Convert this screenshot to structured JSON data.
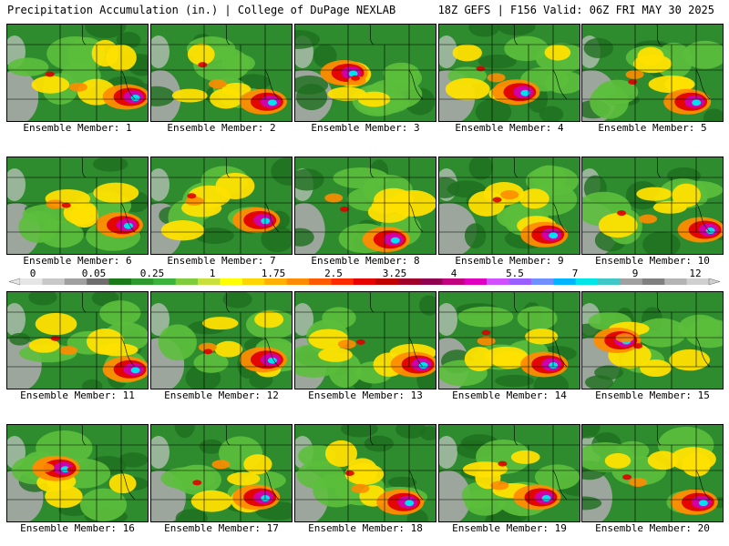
{
  "header": {
    "left": "Precipitation Accumulation (in.) | College of DuPage NEXLAB",
    "right": "18Z GEFS | F156 Valid: 06Z FRI MAY 30 2025"
  },
  "members": [
    {
      "label": "Ensemble Member: 1",
      "hot": [
        0.9,
        0.75
      ]
    },
    {
      "label": "Ensemble Member: 2",
      "hot": [
        0.85,
        0.8
      ]
    },
    {
      "label": "Ensemble Member: 3",
      "hot": [
        0.4,
        0.5
      ]
    },
    {
      "label": "Ensemble Member: 4",
      "hot": [
        0.6,
        0.7
      ]
    },
    {
      "label": "Ensemble Member: 5",
      "hot": [
        0.8,
        0.8
      ]
    },
    {
      "label": "Ensemble Member: 6",
      "hot": [
        0.85,
        0.7
      ]
    },
    {
      "label": "Ensemble Member: 7",
      "hot": [
        0.8,
        0.65
      ]
    },
    {
      "label": "Ensemble Member: 8",
      "hot": [
        0.7,
        0.85
      ]
    },
    {
      "label": "Ensemble Member: 9",
      "hot": [
        0.8,
        0.8
      ]
    },
    {
      "label": "Ensemble Member: 10",
      "hot": [
        0.9,
        0.75
      ]
    },
    {
      "label": "Ensemble Member: 11",
      "hot": [
        0.9,
        0.8
      ]
    },
    {
      "label": "Ensemble Member: 12",
      "hot": [
        0.85,
        0.7
      ]
    },
    {
      "label": "Ensemble Member: 13",
      "hot": [
        0.9,
        0.75
      ]
    },
    {
      "label": "Ensemble Member: 14",
      "hot": [
        0.8,
        0.75
      ]
    },
    {
      "label": "Ensemble Member: 15",
      "hot": [
        0.3,
        0.5
      ]
    },
    {
      "label": "Ensemble Member: 16",
      "hot": [
        0.4,
        0.45
      ]
    },
    {
      "label": "Ensemble Member: 17",
      "hot": [
        0.8,
        0.75
      ]
    },
    {
      "label": "Ensemble Member: 18",
      "hot": [
        0.8,
        0.8
      ]
    },
    {
      "label": "Ensemble Member: 19",
      "hot": [
        0.75,
        0.75
      ]
    },
    {
      "label": "Ensemble Member: 20",
      "hot": [
        0.85,
        0.8
      ]
    }
  ],
  "legend": {
    "ticks": [
      "0",
      "0.05",
      "0.25",
      "1",
      "1.75",
      "2.5",
      "3.25",
      "4",
      "5.5",
      "7",
      "9",
      "12"
    ],
    "colors": [
      "#e6e6e6",
      "#c8c8c8",
      "#a0a0a0",
      "#6e6e6e",
      "#1a7a1a",
      "#2e9a2e",
      "#3cb33c",
      "#7fcc3c",
      "#c8e03c",
      "#ffff00",
      "#ffd700",
      "#ffb000",
      "#ff8c00",
      "#ff5a00",
      "#ff2a00",
      "#e60000",
      "#c00000",
      "#a00028",
      "#900050",
      "#c0007c",
      "#e000c0",
      "#d050ff",
      "#9a60ff",
      "#7090ff",
      "#00b4ff",
      "#00e6e6",
      "#40c8c8",
      "#a0a0a0",
      "#808080",
      "#b4b4b4",
      "#d0d0d0"
    ]
  },
  "palette": {
    "green": "#2e8b2e",
    "dark_green": "#1e6e1e",
    "light_green": "#5cbf3c",
    "yellow": "#ffe000",
    "orange": "#ff8c00",
    "red": "#e00000",
    "magenta": "#d000b0",
    "cyan": "#00e0f0",
    "gray": "#a8a8a8"
  }
}
